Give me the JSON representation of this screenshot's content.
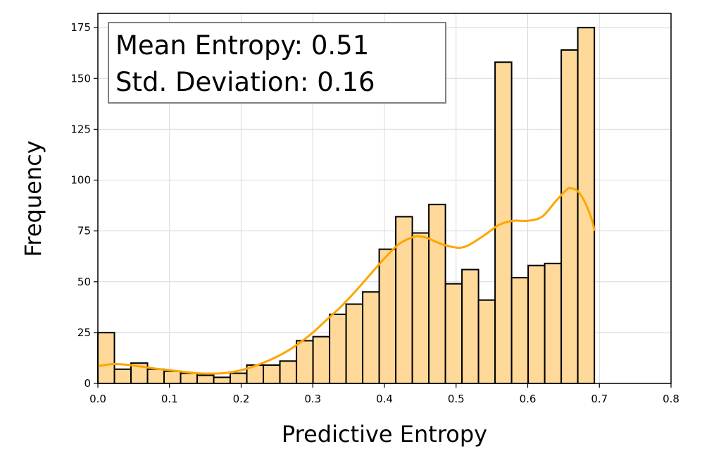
{
  "chart_data": {
    "type": "bar",
    "subtype": "histogram",
    "xlabel": "Predictive Entropy",
    "ylabel": "Frequency",
    "xlim": [
      0.0,
      0.8
    ],
    "ylim": [
      0,
      182
    ],
    "xticks": [
      0.0,
      0.1,
      0.2,
      0.3,
      0.4,
      0.5,
      0.6,
      0.7,
      0.8
    ],
    "xtick_labels": [
      "0.0",
      "0.1",
      "0.2",
      "0.3",
      "0.4",
      "0.5",
      "0.6",
      "0.7",
      "0.8"
    ],
    "yticks": [
      0,
      25,
      50,
      75,
      100,
      125,
      150,
      175
    ],
    "ytick_labels": [
      "0",
      "25",
      "50",
      "75",
      "100",
      "125",
      "150",
      "175"
    ],
    "grid": true,
    "bin_width": 0.0231,
    "bin_edges_start": 0.0,
    "values": [
      25,
      7,
      10,
      7,
      6,
      5,
      4,
      3,
      5,
      9,
      9,
      11,
      21,
      23,
      34,
      39,
      45,
      66,
      82,
      74,
      88,
      49,
      56,
      41,
      158,
      52,
      58,
      59,
      164,
      175
    ],
    "bar_color": "#fed999",
    "edge_color": "#000000",
    "kde": {
      "color": "#ffa500",
      "x": [
        0.0,
        0.02,
        0.04,
        0.06,
        0.08,
        0.1,
        0.12,
        0.14,
        0.16,
        0.18,
        0.2,
        0.22,
        0.24,
        0.26,
        0.28,
        0.3,
        0.32,
        0.34,
        0.36,
        0.38,
        0.4,
        0.42,
        0.44,
        0.45,
        0.46,
        0.48,
        0.5,
        0.51,
        0.52,
        0.54,
        0.56,
        0.58,
        0.6,
        0.62,
        0.64,
        0.655,
        0.66,
        0.67,
        0.68,
        0.69,
        0.693
      ],
      "y": [
        8.5,
        9.5,
        9.2,
        8.3,
        7.3,
        6.5,
        5.7,
        5.0,
        4.8,
        5.2,
        6.5,
        8.7,
        11.5,
        15.0,
        19.5,
        25.0,
        31.5,
        38.0,
        45.5,
        53.5,
        61.5,
        68.5,
        72.0,
        72.3,
        71.5,
        68.5,
        66.8,
        67.0,
        68.5,
        73.0,
        78.0,
        80.0,
        80.0,
        82.0,
        90.0,
        95.5,
        96.0,
        94.5,
        89.0,
        80.0,
        75.0
      ]
    },
    "annotation_lines": [
      "Mean Entropy: 0.51",
      "Std. Deviation: 0.16"
    ]
  }
}
